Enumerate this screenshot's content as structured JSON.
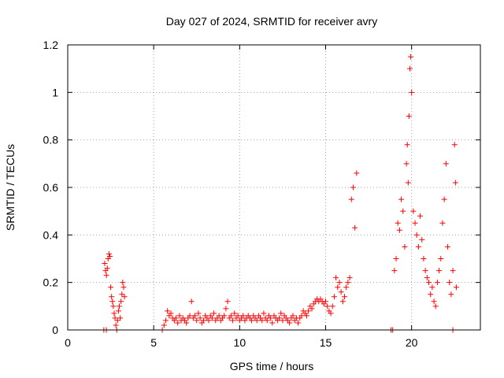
{
  "chart_data": {
    "type": "scatter",
    "title": "Day 027 of 2024, SRMTID for receiver avry",
    "xlabel": "GPS time / hours",
    "ylabel": "SRMTID / TECUs",
    "xlim": [
      0,
      24
    ],
    "ylim": [
      0,
      1.2
    ],
    "xticks": [
      0,
      5,
      10,
      15,
      20
    ],
    "yticks": [
      0,
      0.2,
      0.4,
      0.6,
      0.8,
      1.0,
      1.2
    ],
    "xtick_labels": [
      "0",
      "5",
      "10",
      "15",
      "20"
    ],
    "ytick_labels": [
      "0",
      "0.2",
      "0.4",
      "0.6",
      "0.8",
      "1",
      "1.2"
    ],
    "grid": true,
    "marker": "+",
    "color": "#ff0000",
    "series": [
      {
        "name": "SRMTID",
        "points": [
          [
            2.1,
            0
          ],
          [
            2.25,
            0
          ],
          [
            2.15,
            0.28
          ],
          [
            2.2,
            0.25
          ],
          [
            2.25,
            0.23
          ],
          [
            2.3,
            0.26
          ],
          [
            2.35,
            0.3
          ],
          [
            2.4,
            0.32
          ],
          [
            2.45,
            0.31
          ],
          [
            2.5,
            0.18
          ],
          [
            2.55,
            0.14
          ],
          [
            2.6,
            0.12
          ],
          [
            2.65,
            0.1
          ],
          [
            2.7,
            0.07
          ],
          [
            2.75,
            0.05
          ],
          [
            2.8,
            0.02
          ],
          [
            2.85,
            0
          ],
          [
            2.9,
            0.04
          ],
          [
            2.95,
            0.08
          ],
          [
            3.0,
            0.1
          ],
          [
            3.05,
            0.05
          ],
          [
            3.1,
            0.12
          ],
          [
            3.15,
            0.15
          ],
          [
            3.2,
            0.2
          ],
          [
            3.25,
            0.18
          ],
          [
            3.3,
            0.14
          ],
          [
            5.5,
            0
          ],
          [
            5.6,
            0.02
          ],
          [
            5.7,
            0.04
          ],
          [
            5.8,
            0.08
          ],
          [
            5.9,
            0.06
          ],
          [
            6.0,
            0.07
          ],
          [
            6.1,
            0.05
          ],
          [
            6.2,
            0.04
          ],
          [
            6.3,
            0.05
          ],
          [
            6.4,
            0.03
          ],
          [
            6.5,
            0.06
          ],
          [
            6.6,
            0.04
          ],
          [
            6.7,
            0.05
          ],
          [
            6.8,
            0.04
          ],
          [
            6.9,
            0.03
          ],
          [
            7.0,
            0.05
          ],
          [
            7.1,
            0.06
          ],
          [
            7.2,
            0.12
          ],
          [
            7.3,
            0.05
          ],
          [
            7.4,
            0.06
          ],
          [
            7.5,
            0.04
          ],
          [
            7.6,
            0.07
          ],
          [
            7.7,
            0.05
          ],
          [
            7.8,
            0.03
          ],
          [
            7.9,
            0.04
          ],
          [
            8.0,
            0.06
          ],
          [
            8.1,
            0.05
          ],
          [
            8.2,
            0.04
          ],
          [
            8.3,
            0.06
          ],
          [
            8.4,
            0.05
          ],
          [
            8.5,
            0.07
          ],
          [
            8.6,
            0.04
          ],
          [
            8.7,
            0.05
          ],
          [
            8.8,
            0.06
          ],
          [
            8.9,
            0.04
          ],
          [
            9.0,
            0.05
          ],
          [
            9.1,
            0.06
          ],
          [
            9.2,
            0.09
          ],
          [
            9.3,
            0.12
          ],
          [
            9.4,
            0.05
          ],
          [
            9.5,
            0.06
          ],
          [
            9.6,
            0.04
          ],
          [
            9.7,
            0.07
          ],
          [
            9.8,
            0.05
          ],
          [
            9.9,
            0.06
          ],
          [
            10.0,
            0.04
          ],
          [
            10.1,
            0.05
          ],
          [
            10.2,
            0.06
          ],
          [
            10.3,
            0.04
          ],
          [
            10.4,
            0.05
          ],
          [
            10.5,
            0.06
          ],
          [
            10.6,
            0.05
          ],
          [
            10.7,
            0.04
          ],
          [
            10.8,
            0.06
          ],
          [
            10.9,
            0.05
          ],
          [
            11.0,
            0.04
          ],
          [
            11.1,
            0.06
          ],
          [
            11.2,
            0.05
          ],
          [
            11.3,
            0.04
          ],
          [
            11.4,
            0.07
          ],
          [
            11.5,
            0.05
          ],
          [
            11.6,
            0.04
          ],
          [
            11.7,
            0.06
          ],
          [
            11.8,
            0.05
          ],
          [
            11.9,
            0.03
          ],
          [
            12.0,
            0.06
          ],
          [
            12.1,
            0.05
          ],
          [
            12.2,
            0.04
          ],
          [
            12.3,
            0.05
          ],
          [
            12.4,
            0.07
          ],
          [
            12.5,
            0.04
          ],
          [
            12.6,
            0.06
          ],
          [
            12.7,
            0.05
          ],
          [
            12.8,
            0.04
          ],
          [
            12.9,
            0.03
          ],
          [
            13.0,
            0.05
          ],
          [
            13.1,
            0.06
          ],
          [
            13.2,
            0.04
          ],
          [
            13.3,
            0.05
          ],
          [
            13.4,
            0.03
          ],
          [
            13.5,
            0.05
          ],
          [
            13.6,
            0.06
          ],
          [
            13.7,
            0.08
          ],
          [
            13.8,
            0.07
          ],
          [
            13.9,
            0.06
          ],
          [
            14.0,
            0.08
          ],
          [
            14.1,
            0.1
          ],
          [
            14.2,
            0.09
          ],
          [
            14.3,
            0.11
          ],
          [
            14.4,
            0.12
          ],
          [
            14.5,
            0.13
          ],
          [
            14.6,
            0.12
          ],
          [
            14.7,
            0.13
          ],
          [
            14.8,
            0.12
          ],
          [
            14.9,
            0.11
          ],
          [
            15.0,
            0.12
          ],
          [
            15.1,
            0.1
          ],
          [
            15.2,
            0.08
          ],
          [
            15.3,
            0.07
          ],
          [
            15.4,
            0.1
          ],
          [
            15.5,
            0.14
          ],
          [
            15.6,
            0.22
          ],
          [
            15.7,
            0.18
          ],
          [
            15.8,
            0.2
          ],
          [
            15.9,
            0.16
          ],
          [
            16.0,
            0.12
          ],
          [
            16.1,
            0.14
          ],
          [
            16.2,
            0.18
          ],
          [
            16.3,
            0.2
          ],
          [
            16.4,
            0.22
          ],
          [
            16.5,
            0.55
          ],
          [
            16.6,
            0.6
          ],
          [
            16.7,
            0.43
          ],
          [
            16.8,
            0.66
          ],
          [
            18.8,
            0
          ],
          [
            18.9,
            0
          ],
          [
            19.0,
            0.25
          ],
          [
            19.1,
            0.3
          ],
          [
            19.2,
            0.45
          ],
          [
            19.3,
            0.42
          ],
          [
            19.4,
            0.55
          ],
          [
            19.5,
            0.5
          ],
          [
            19.6,
            0.35
          ],
          [
            19.7,
            0.7
          ],
          [
            19.75,
            0.78
          ],
          [
            19.8,
            0.62
          ],
          [
            19.85,
            0.9
          ],
          [
            19.9,
            1.1
          ],
          [
            19.95,
            1.15
          ],
          [
            20.0,
            1.0
          ],
          [
            20.1,
            0.5
          ],
          [
            20.2,
            0.45
          ],
          [
            20.3,
            0.4
          ],
          [
            20.4,
            0.35
          ],
          [
            20.5,
            0.48
          ],
          [
            20.6,
            0.38
          ],
          [
            20.7,
            0.3
          ],
          [
            20.8,
            0.25
          ],
          [
            20.9,
            0.22
          ],
          [
            21.0,
            0.2
          ],
          [
            21.1,
            0.15
          ],
          [
            21.2,
            0.18
          ],
          [
            21.3,
            0.12
          ],
          [
            21.4,
            0.1
          ],
          [
            21.5,
            0.2
          ],
          [
            21.6,
            0.25
          ],
          [
            21.7,
            0.3
          ],
          [
            21.8,
            0.45
          ],
          [
            21.9,
            0.55
          ],
          [
            22.0,
            0.7
          ],
          [
            22.1,
            0.35
          ],
          [
            22.2,
            0.2
          ],
          [
            22.3,
            0.15
          ],
          [
            22.4,
            0.25
          ],
          [
            22.5,
            0.78
          ],
          [
            22.55,
            0.62
          ],
          [
            22.6,
            0.18
          ],
          [
            22.4,
            0
          ]
        ]
      }
    ]
  }
}
